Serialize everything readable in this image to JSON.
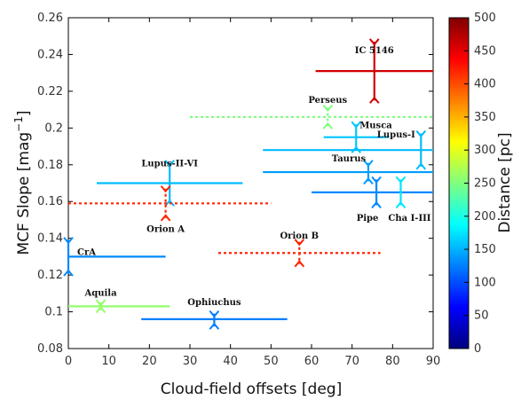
{
  "chart_data": {
    "type": "scatter",
    "xlabel": "Cloud-field offsets [deg]",
    "ylabel": "MCF Slope [mag",
    "ylabel_sup": "−1",
    "ylabel_end": "]",
    "xlim": [
      0,
      90
    ],
    "ylim": [
      0.08,
      0.26
    ],
    "xticks": [
      0,
      10,
      20,
      30,
      40,
      50,
      60,
      70,
      80,
      90
    ],
    "yticks": [
      0.08,
      0.1,
      0.12,
      0.14,
      0.16,
      0.18,
      0.2,
      0.22,
      0.24,
      0.26
    ],
    "grid": false,
    "colorbar": {
      "label": "Distance [pc]",
      "min": 0,
      "max": 500,
      "ticks": [
        0,
        50,
        100,
        150,
        200,
        250,
        300,
        350,
        400,
        450,
        500
      ],
      "colormap": [
        "#00007f",
        "#0000ff",
        "#007fff",
        "#00ffff",
        "#7fff7f",
        "#ffff00",
        "#ff7f00",
        "#ff0000",
        "#7f0000"
      ]
    },
    "points": [
      {
        "name": "IC 5146",
        "x": 75.5,
        "y": 0.231,
        "xmin": 61,
        "xmax": 90,
        "ymin": 0.215,
        "ymax": 0.247,
        "distance": 460,
        "dashed": false
      },
      {
        "name": "Perseus",
        "x": 64,
        "y": 0.206,
        "xmin": 30,
        "xmax": 90,
        "ymin": 0.201,
        "ymax": 0.211,
        "distance": 250,
        "dashed": true
      },
      {
        "name": "Musca",
        "x": 71,
        "y": 0.195,
        "xmin": 63,
        "xmax": 79,
        "ymin": 0.188,
        "ymax": 0.202,
        "distance": 160,
        "dashed": false
      },
      {
        "name": "Lupus-I",
        "x": 87,
        "y": 0.188,
        "xmin": 48,
        "xmax": 90,
        "ymin": 0.179,
        "ymax": 0.197,
        "distance": 155,
        "dashed": false
      },
      {
        "name": "Taurus",
        "x": 74,
        "y": 0.176,
        "xmin": 48,
        "xmax": 90,
        "ymin": 0.171,
        "ymax": 0.181,
        "distance": 140,
        "dashed": false
      },
      {
        "name": "Pipe",
        "x": 76,
        "y": 0.165,
        "xmin": 60,
        "xmax": 90,
        "ymin": 0.158,
        "ymax": 0.172,
        "distance": 130,
        "dashed": false
      },
      {
        "name": "Cha I-III",
        "x": 82,
        "y": 0.165,
        "xmin": 82,
        "xmax": 82,
        "ymin": 0.158,
        "ymax": 0.172,
        "distance": 175,
        "dashed": false
      },
      {
        "name": "Lupus-II-VI",
        "x": 25,
        "y": 0.17,
        "xmin": 7,
        "xmax": 43,
        "ymin": 0.159,
        "ymax": 0.181,
        "distance": 155,
        "dashed": false
      },
      {
        "name": "Orion A",
        "x": 24,
        "y": 0.159,
        "xmin": 0,
        "xmax": 50,
        "ymin": 0.151,
        "ymax": 0.167,
        "distance": 420,
        "dashed": true
      },
      {
        "name": "Orion B",
        "x": 57,
        "y": 0.132,
        "xmin": 37,
        "xmax": 77,
        "ymin": 0.126,
        "ymax": 0.138,
        "distance": 420,
        "dashed": true
      },
      {
        "name": "CrA",
        "x": 0,
        "y": 0.13,
        "xmin": 0,
        "xmax": 24,
        "ymin": 0.121,
        "ymax": 0.139,
        "distance": 130,
        "dashed": false
      },
      {
        "name": "Aquila",
        "x": 8,
        "y": 0.103,
        "xmin": 0,
        "xmax": 25,
        "ymin": 0.101,
        "ymax": 0.105,
        "distance": 260,
        "dashed": false
      },
      {
        "name": "Ophiuchus",
        "x": 36,
        "y": 0.096,
        "xmin": 18,
        "xmax": 54,
        "ymin": 0.092,
        "ymax": 0.099,
        "distance": 125,
        "dashed": false
      }
    ]
  }
}
